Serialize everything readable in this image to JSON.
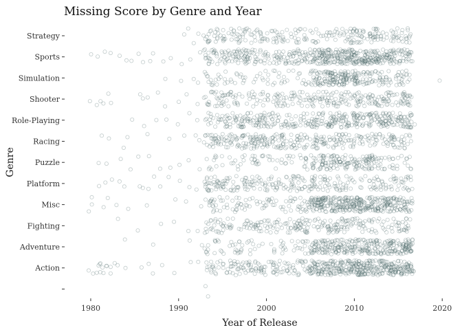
{
  "chart_data": {
    "type": "scatter",
    "title": "Missing Score by Genre and Year",
    "xlabel": "Year of Release",
    "ylabel": "Genre",
    "xlim": [
      1977.5,
      2021
    ],
    "x_ticks": [
      1980,
      1990,
      2000,
      2010,
      2020
    ],
    "categories": [
      "",
      "Action",
      "Adventure",
      "Fighting",
      "Misc",
      "Platform",
      "Puzzle",
      "Racing",
      "Role-Playing",
      "Shooter",
      "Simulation",
      "Sports",
      "Strategy"
    ],
    "grid": false,
    "legend": "none",
    "point_color": "#4d6b6b",
    "point_opacity": 0.35,
    "jitter": {
      "x": 0.4,
      "y": 0.35
    },
    "series": [
      {
        "category": "",
        "x": [
          1993.0,
          1993.3
        ]
      },
      {
        "category": "Action",
        "x": [
          1979.7,
          1980.4,
          1980.6,
          1980.8,
          1981.0,
          1981.0,
          1981.2,
          1981.3,
          1981.5,
          1981.7,
          1981.9,
          1982.1,
          1982.3,
          1982.6,
          1983.2,
          1984.0,
          1985.6,
          1986.5,
          1987.1,
          1988.0,
          1989.5,
          1991.3,
          1992.2
        ],
        "dense": [
          {
            "from": 1993,
            "to": 2005,
            "n": 130
          },
          {
            "from": 2005,
            "to": 2010,
            "n": 140
          },
          {
            "from": 2010,
            "to": 2016.6,
            "n": 210
          }
        ]
      },
      {
        "category": "Adventure",
        "x": [
          1983.7,
          1987.0,
          1991.2,
          1992.6
        ],
        "dense": [
          {
            "from": 1993,
            "to": 2005,
            "n": 65
          },
          {
            "from": 2005,
            "to": 2011,
            "n": 140
          },
          {
            "from": 2011,
            "to": 2016.6,
            "n": 150
          }
        ]
      },
      {
        "category": "Fighting",
        "x": [
          1983.0,
          1985.2,
          1988.0,
          1989.6,
          1991.0,
          1992.0
        ],
        "dense": [
          {
            "from": 1993,
            "to": 2005,
            "n": 120
          },
          {
            "from": 2005,
            "to": 2016.5,
            "n": 120
          }
        ]
      },
      {
        "category": "Misc",
        "x": [
          1979.8,
          1980.0,
          1980.2,
          1981.4,
          1981.8,
          1983.0,
          1984.2,
          1986.4,
          1989.6,
          1991.0,
          1992.4
        ],
        "dense": [
          {
            "from": 1993,
            "to": 2005,
            "n": 90
          },
          {
            "from": 2005,
            "to": 2011,
            "n": 200
          },
          {
            "from": 2011,
            "to": 2016.6,
            "n": 140
          }
        ]
      },
      {
        "category": "Platform",
        "x": [
          1981.0,
          1981.7,
          1982.3,
          1983.2,
          1984.0,
          1985.5,
          1986.0,
          1986.5,
          1987.2,
          1988.0,
          1989.0,
          1990.0,
          1991.4,
          1992.2
        ],
        "dense": [
          {
            "from": 1993,
            "to": 2005,
            "n": 140
          },
          {
            "from": 2005,
            "to": 2016.5,
            "n": 110
          }
        ]
      },
      {
        "category": "Puzzle",
        "x": [
          1981.0,
          1981.6,
          1983.5,
          1984.4,
          1985.3,
          1986.7,
          1988.1,
          1989.0,
          1990.2,
          1991.3,
          1992.3
        ],
        "dense": [
          {
            "from": 1993,
            "to": 2005,
            "n": 60
          },
          {
            "from": 2005,
            "to": 2012,
            "n": 130
          },
          {
            "from": 2012,
            "to": 2016.5,
            "n": 40
          }
        ]
      },
      {
        "category": "Racing",
        "x": [
          1981.3,
          1982.0,
          1983.6,
          1984.2,
          1986.3,
          1989.1,
          1990.6,
          1991.8,
          1992.5
        ],
        "dense": [
          {
            "from": 1993,
            "to": 2005,
            "n": 170
          },
          {
            "from": 2005,
            "to": 2016.5,
            "n": 130
          }
        ]
      },
      {
        "category": "Role-Playing",
        "x": [
          1984.9,
          1986.1,
          1987.4,
          1988.8,
          1989.9,
          1991.1,
          1992.1,
          2016.9
        ],
        "dense": [
          {
            "from": 1993,
            "to": 2005,
            "n": 150
          },
          {
            "from": 2005,
            "to": 2016.6,
            "n": 220
          }
        ]
      },
      {
        "category": "Shooter",
        "x": [
          1979.9,
          1980.8,
          1981.1,
          1981.5,
          1981.9,
          1982.2,
          1985.5,
          1986.1,
          1986.5,
          1987.7,
          1988.5,
          1990.0,
          1990.8,
          1992.0,
          1992.7
        ],
        "dense": [
          {
            "from": 1993,
            "to": 2005,
            "n": 110
          },
          {
            "from": 2005,
            "to": 2016.6,
            "n": 150
          }
        ]
      },
      {
        "category": "Simulation",
        "x": [
          1988.5,
          1990.4,
          1991.6,
          1992.4,
          2019.9
        ],
        "dense": [
          {
            "from": 1993,
            "to": 2005,
            "n": 60
          },
          {
            "from": 2005,
            "to": 2007,
            "n": 40
          },
          {
            "from": 2007,
            "to": 2010.5,
            "n": 110
          },
          {
            "from": 2010.5,
            "to": 2016.5,
            "n": 70
          }
        ]
      },
      {
        "category": "Sports",
        "x": [
          1980.0,
          1980.8,
          1981.6,
          1982.2,
          1983.1,
          1984.0,
          1984.6,
          1985.3,
          1986.1,
          1986.8,
          1987.2,
          1988.1,
          1989.0,
          1990.4,
          1991.4,
          1992.4
        ],
        "dense": [
          {
            "from": 1993,
            "to": 2005,
            "n": 170
          },
          {
            "from": 2005,
            "to": 2011.5,
            "n": 200
          },
          {
            "from": 2011.5,
            "to": 2016.6,
            "n": 120
          }
        ]
      },
      {
        "category": "Strategy",
        "x": [
          1990.6,
          1991.2,
          1991.8,
          1992.4
        ],
        "dense": [
          {
            "from": 1993,
            "to": 2005,
            "n": 110
          },
          {
            "from": 2005,
            "to": 2016.5,
            "n": 120
          }
        ]
      }
    ]
  }
}
